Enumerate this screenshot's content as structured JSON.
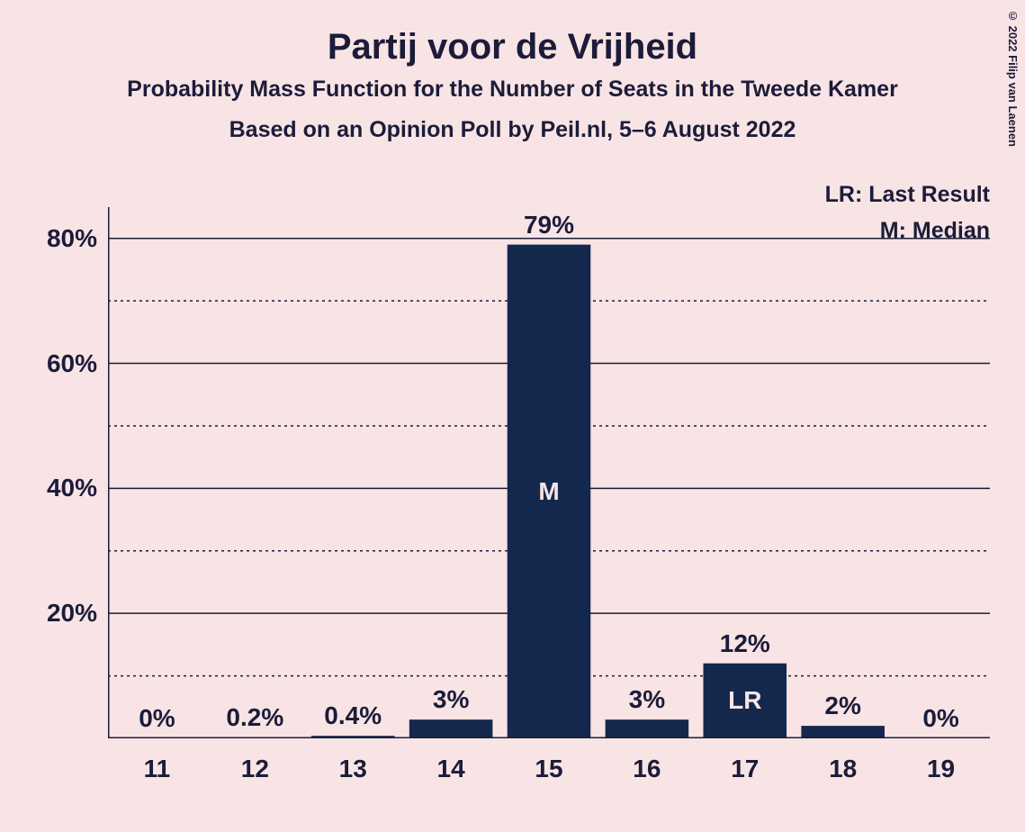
{
  "title": "Partij voor de Vrijheid",
  "subtitle1": "Probability Mass Function for the Number of Seats in the Tweede Kamer",
  "subtitle2": "Based on an Opinion Poll by Peil.nl, 5–6 August 2022",
  "copyright": "© 2022 Filip van Laenen",
  "legend": {
    "lr": "LR: Last Result",
    "m": "M: Median"
  },
  "chart": {
    "type": "bar",
    "categories": [
      "11",
      "12",
      "13",
      "14",
      "15",
      "16",
      "17",
      "18",
      "19"
    ],
    "values": [
      0,
      0.2,
      0.4,
      3,
      79,
      3,
      12,
      2,
      0
    ],
    "value_labels": [
      "0%",
      "0.2%",
      "0.4%",
      "3%",
      "79%",
      "3%",
      "12%",
      "2%",
      "0%"
    ],
    "markers": {
      "4": "M",
      "6": "LR"
    },
    "bar_color": "#14284e",
    "background_color": "#f8e4e4",
    "text_color": "#1c1c3a",
    "ylim_max": 85,
    "ytick_major_step": 20,
    "ytick_minor_step": 10,
    "ytick_labels": [
      "20%",
      "40%",
      "60%",
      "80%"
    ],
    "bar_width_ratio": 0.85,
    "title_fontsize": 40,
    "subtitle_fontsize": 25,
    "axis_label_fontsize": 28,
    "legend_fontsize": 25,
    "copyright_fontsize": 13
  }
}
